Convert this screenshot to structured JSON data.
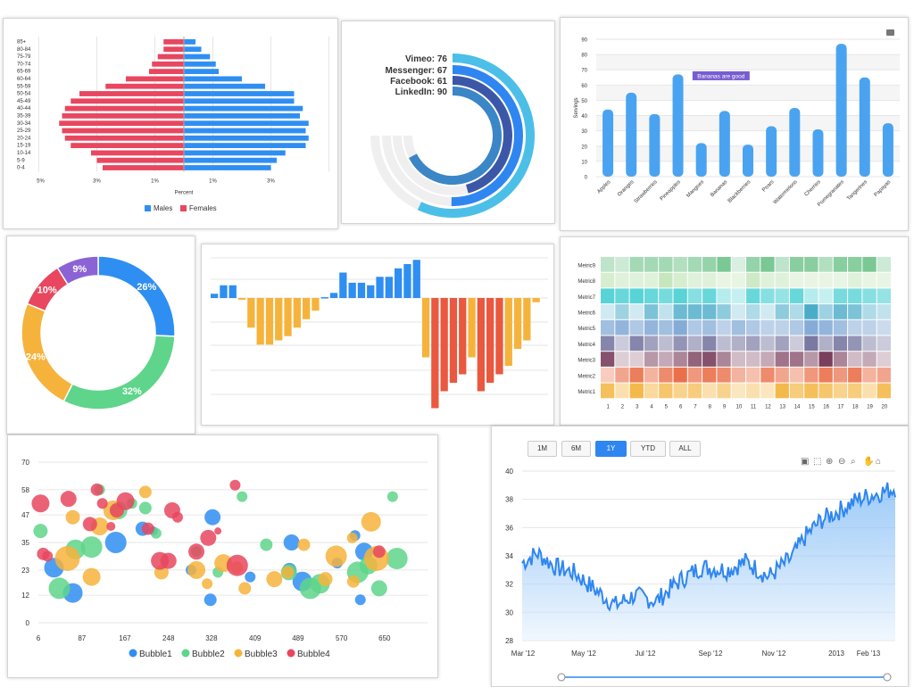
{
  "colors": {
    "blue": "#2f8ef2",
    "red": "#e8475f",
    "green": "#5ed58a",
    "orange": "#f6b33c",
    "purple": "#8b63d5",
    "deep_red": "#e9583f",
    "light_blue": "#9fcff7"
  },
  "pyramid": {
    "age_groups": [
      "0-4",
      "5-9",
      "10-14",
      "15-19",
      "20-24",
      "25-29",
      "30-34",
      "35-39",
      "40-44",
      "45-49",
      "50-54",
      "55-59",
      "60-64",
      "65-69",
      "70-74",
      "75-79",
      "80-84",
      "85+"
    ],
    "males": [
      3.0,
      3.2,
      3.5,
      4.2,
      4.3,
      4.2,
      4.3,
      4.0,
      4.1,
      3.8,
      3.8,
      2.8,
      2.0,
      1.2,
      1.1,
      0.9,
      0.6,
      0.4
    ],
    "females": [
      -2.8,
      -3.0,
      -3.2,
      -3.9,
      -4.1,
      -4.2,
      -4.3,
      -4.2,
      -4.1,
      -3.9,
      -3.6,
      -2.7,
      -2.0,
      -1.2,
      -1.1,
      -0.9,
      -0.7,
      -0.7
    ],
    "tick_labels": [
      "5%",
      "3%",
      "1%",
      "1%",
      "3%"
    ],
    "xlabel": "Percent",
    "legend": [
      "Males",
      "Females"
    ]
  },
  "radial": {
    "series": [
      {
        "label": "Vimeo: 76",
        "value": 76,
        "color": "#4bbfe8"
      },
      {
        "label": "Messenger: 67",
        "value": 67,
        "color": "#2f86f0"
      },
      {
        "label": "Facebook: 61",
        "value": 61,
        "color": "#3d57a8"
      },
      {
        "label": "LinkedIn: 90",
        "value": 90,
        "color": "#3b86c6"
      }
    ]
  },
  "fruit": {
    "categories": [
      "Apples",
      "Oranges",
      "Strawberries",
      "Pineapples",
      "Mangoes",
      "Bananas",
      "Blackberries",
      "Pears",
      "Watermelons",
      "Cherries",
      "Pomegranates",
      "Tangerines",
      "Papayas"
    ],
    "values": [
      44,
      55,
      41,
      67,
      22,
      43,
      21,
      33,
      45,
      31,
      87,
      65,
      35
    ],
    "yticks": [
      "0",
      "10",
      "20",
      "30",
      "40",
      "50",
      "60",
      "70",
      "80",
      "90"
    ],
    "ylabel": "Servings",
    "annotation": "Bananas are good"
  },
  "donut": {
    "slices": [
      {
        "label": "26%",
        "value": 26,
        "color": "#2f8ef2"
      },
      {
        "label": "32%",
        "value": 32,
        "color": "#5ed58a"
      },
      {
        "label": "24%",
        "value": 24,
        "color": "#f6b33c"
      },
      {
        "label": "10%",
        "value": 10,
        "color": "#e8475f"
      },
      {
        "label": "9%",
        "value": 9,
        "color": "#8b63d5"
      }
    ]
  },
  "negbars": {
    "values": [
      0.5,
      1.5,
      1.5,
      -0.2,
      -3.5,
      -5.5,
      -5.5,
      -5,
      -4.5,
      -3.5,
      -2.5,
      -1.5,
      0.1,
      0.6,
      3,
      1.8,
      1.8,
      1.5,
      2.5,
      2.5,
      3.5,
      4,
      4.5,
      -7,
      -13,
      -11,
      -10,
      -9,
      -7,
      -11,
      -10,
      -9,
      -8,
      -6,
      -5,
      -0.5
    ]
  },
  "heatmap": {
    "metrics": [
      "Metric1",
      "Metric2",
      "Metric3",
      "Metric4",
      "Metric5",
      "Metric6",
      "Metric7",
      "Metric8",
      "Metric9"
    ],
    "columns": [
      "1",
      "2",
      "3",
      "4",
      "5",
      "6",
      "7",
      "8",
      "9",
      "10",
      "11",
      "12",
      "13",
      "14",
      "15",
      "16",
      "17",
      "18",
      "19",
      "20"
    ],
    "row_colors": [
      "#f3b23a",
      "#e8633a",
      "#6d2d4e",
      "#5d5d8f",
      "#5b8fc8",
      "#3aa4c3",
      "#49cfd2",
      "#9bd38c",
      "#5fbd7e"
    ],
    "intensity": [
      [
        0.8,
        0.3,
        0.9,
        0.4,
        0.7,
        0.5,
        0.6,
        0.3,
        0.5,
        0.2,
        0.3,
        0.2,
        0.9,
        0.6,
        0.8,
        0.7,
        0.5,
        0.6,
        0.3,
        0.8
      ],
      [
        0.2,
        0.5,
        0.8,
        0.4,
        0.7,
        0.9,
        0.6,
        0.8,
        0.7,
        0.4,
        0.3,
        0.7,
        0.5,
        0.3,
        0.6,
        0.8,
        0.6,
        0.8,
        0.4,
        0.5
      ],
      [
        0.8,
        0.1,
        0.1,
        0.4,
        0.3,
        0.5,
        0.7,
        0.8,
        0.5,
        0.2,
        0.2,
        0.3,
        0.6,
        0.6,
        0.4,
        0.9,
        0.5,
        0.2,
        0.3,
        0.1
      ],
      [
        0.7,
        0.2,
        0.7,
        0.5,
        0.3,
        0.6,
        0.4,
        0.7,
        0.3,
        0.4,
        0.5,
        0.3,
        0.5,
        0.2,
        0.8,
        0.4,
        0.7,
        0.6,
        0.3,
        0.2
      ],
      [
        0.5,
        0.6,
        0.4,
        0.6,
        0.5,
        0.7,
        0.4,
        0.5,
        0.3,
        0.5,
        0.4,
        0.3,
        0.3,
        0.4,
        0.7,
        0.6,
        0.5,
        0.3,
        0.3,
        0.2
      ],
      [
        0.1,
        0.4,
        0.1,
        0.6,
        0.2,
        0.7,
        0.7,
        0.7,
        0.5,
        0.1,
        0.3,
        0.1,
        0.5,
        0.3,
        0.9,
        0.4,
        0.7,
        0.6,
        0.3,
        0.2
      ],
      [
        0.9,
        0.8,
        0.9,
        0.8,
        0.7,
        0.9,
        0.6,
        0.8,
        0.3,
        0.2,
        0.8,
        0.6,
        0.5,
        0.8,
        0.3,
        0.2,
        0.7,
        0.7,
        0.6,
        0.5
      ],
      [
        0.3,
        0.2,
        0.2,
        0.2,
        0.5,
        0.3,
        0.2,
        0.2,
        0.1,
        0.1,
        0.4,
        0.2,
        0.2,
        0.1,
        0.1,
        0.1,
        0.1,
        0.2,
        0.1,
        0.1
      ],
      [
        0.3,
        0.2,
        0.5,
        0.5,
        0.5,
        0.4,
        0.5,
        0.6,
        0.8,
        0.1,
        0.6,
        0.8,
        0.3,
        0.7,
        0.7,
        0.4,
        0.7,
        0.7,
        0.8,
        0.2
      ]
    ]
  },
  "bubble": {
    "yticks": [
      0,
      12,
      23,
      35,
      47,
      58,
      70
    ],
    "xticks": [
      6,
      87,
      167,
      248,
      328,
      409,
      489,
      570,
      650
    ],
    "series": [
      {
        "name": "Bubble1",
        "color": "#2f8ef2"
      },
      {
        "name": "Bubble2",
        "color": "#5ed58a"
      },
      {
        "name": "Bubble3",
        "color": "#f6b33c"
      },
      {
        "name": "Bubble4",
        "color": "#e8475f"
      }
    ],
    "points": [
      [
        0,
        35,
        24,
        11
      ],
      [
        0,
        70,
        13,
        11
      ],
      [
        0,
        150,
        35,
        12
      ],
      [
        0,
        200,
        41,
        8
      ],
      [
        0,
        220,
        40,
        5
      ],
      [
        0,
        290,
        23,
        6
      ],
      [
        0,
        326,
        10,
        7
      ],
      [
        0,
        330,
        46,
        9
      ],
      [
        0,
        400,
        20,
        6
      ],
      [
        0,
        473,
        23,
        8
      ],
      [
        0,
        477,
        35,
        9
      ],
      [
        0,
        497,
        18,
        11
      ],
      [
        0,
        562,
        26,
        6
      ],
      [
        0,
        595,
        38,
        6
      ],
      [
        0,
        605,
        10,
        6
      ],
      [
        0,
        612,
        31,
        10
      ],
      [
        1,
        10,
        40,
        8
      ],
      [
        1,
        45,
        15,
        12
      ],
      [
        1,
        75,
        32,
        11
      ],
      [
        1,
        105,
        33,
        12
      ],
      [
        1,
        120,
        58,
        6
      ],
      [
        1,
        155,
        49,
        10
      ],
      [
        1,
        180,
        52,
        6
      ],
      [
        1,
        205,
        50,
        7
      ],
      [
        1,
        225,
        39,
        6
      ],
      [
        1,
        300,
        31,
        6
      ],
      [
        1,
        340,
        22,
        6
      ],
      [
        1,
        385,
        55,
        6
      ],
      [
        1,
        430,
        34,
        7
      ],
      [
        1,
        472,
        22,
        9
      ],
      [
        1,
        512,
        15,
        12
      ],
      [
        1,
        530,
        17,
        11
      ],
      [
        1,
        600,
        22,
        12
      ],
      [
        1,
        620,
        25,
        10
      ],
      [
        1,
        640,
        15,
        9
      ],
      [
        1,
        673,
        28,
        12
      ],
      [
        1,
        665,
        55,
        6
      ],
      [
        2,
        60,
        28,
        14
      ],
      [
        2,
        70,
        46,
        8
      ],
      [
        2,
        105,
        20,
        10
      ],
      [
        2,
        120,
        42,
        10
      ],
      [
        2,
        145,
        49,
        11
      ],
      [
        2,
        205,
        57,
        7
      ],
      [
        2,
        235,
        22,
        8
      ],
      [
        2,
        300,
        23,
        10
      ],
      [
        2,
        320,
        17,
        6
      ],
      [
        2,
        350,
        26,
        10
      ],
      [
        2,
        375,
        24,
        7
      ],
      [
        2,
        390,
        15,
        7
      ],
      [
        2,
        445,
        19,
        9
      ],
      [
        2,
        470,
        22,
        7
      ],
      [
        2,
        500,
        34,
        7
      ],
      [
        2,
        540,
        19,
        8
      ],
      [
        2,
        560,
        29,
        12
      ],
      [
        2,
        590,
        37,
        6
      ],
      [
        2,
        592,
        18,
        7
      ],
      [
        2,
        625,
        44,
        11
      ],
      [
        2,
        635,
        28,
        14
      ]
    ]
  },
  "bubble_red": [
    [
      10,
      62,
      54,
      9
    ],
    [
      40,
      102,
      43,
      8
    ],
    [
      45,
      115,
      58,
      7
    ],
    [
      10,
      125,
      52,
      6
    ],
    [
      40,
      141,
      42,
      5
    ],
    [
      30,
      152,
      49,
      8
    ],
    [
      25,
      168,
      53,
      10
    ],
    [
      10,
      210,
      41,
      7
    ],
    [
      15,
      232,
      27,
      10
    ],
    [
      6,
      248,
      27,
      9
    ],
    [
      20,
      255,
      49,
      9
    ],
    [
      35,
      265,
      46,
      6
    ],
    [
      22,
      300,
      31,
      9
    ],
    [
      27,
      322,
      37,
      9
    ],
    [
      21,
      340,
      40,
      4
    ],
    [
      23,
      376,
      25,
      12
    ],
    [
      35,
      372,
      60,
      6
    ],
    [
      30,
      640,
      31,
      7
    ],
    [
      40,
      10,
      52,
      10
    ],
    [
      28,
      15,
      30,
      7
    ],
    [
      46,
      23,
      29,
      6
    ]
  ],
  "stock": {
    "range_buttons": [
      "1M",
      "6M",
      "1Y",
      "YTD",
      "ALL"
    ],
    "active_range": "1Y",
    "yticks": [
      "28",
      "30",
      "32",
      "34",
      "36",
      "38",
      "40"
    ],
    "xticks": [
      "Mar '12",
      "May '12",
      "Jul '12",
      "Sep '12",
      "Nov '12",
      "2013",
      "Feb '13"
    ],
    "toolbar_icons": [
      "camera-icon",
      "select-icon",
      "zoom-in-icon",
      "zoom-out-icon",
      "zoom-icon",
      "pan-icon",
      "home-icon"
    ],
    "line_color": "#2f86f0",
    "fill_color": "#cfe5fb"
  }
}
